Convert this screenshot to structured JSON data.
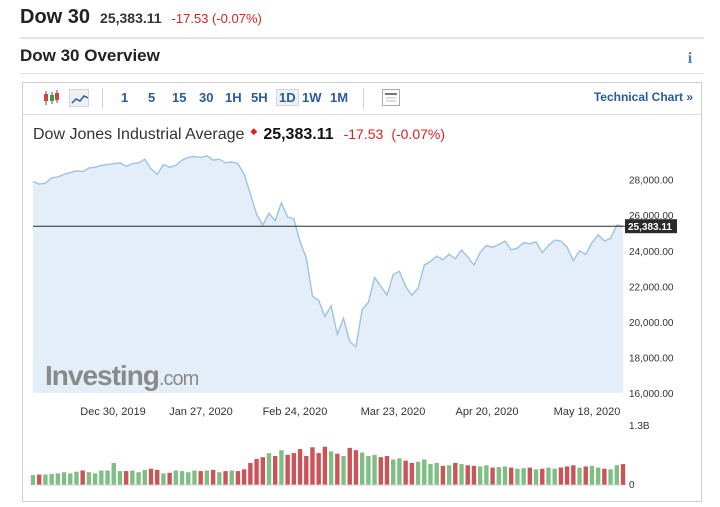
{
  "header": {
    "title": "Dow 30",
    "price": "25,383.11",
    "change": "-17.53 (-0.07%)"
  },
  "overview": {
    "title": "Dow 30 Overview",
    "info_icon": "i"
  },
  "toolbar": {
    "ranges": [
      "1",
      "5",
      "15",
      "30",
      "1H",
      "5H",
      "1D",
      "1W",
      "1M"
    ],
    "selected": "1D",
    "technical_chart": "Technical Chart »"
  },
  "chart_title": {
    "name": "Dow Jones Industrial Average",
    "price": "25,383.11",
    "change": "-17.53",
    "pct": "(-0.07%)"
  },
  "watermark": {
    "brand": "Investing",
    "suffix": ".com"
  },
  "colors": {
    "area_fill": "#e3eef8",
    "line": "#9cc3e3",
    "price_line": "#2a2a2a",
    "up": "#7fbf86",
    "down": "#c9545a",
    "neg": "#e02020",
    "link": "#2a5aa0"
  },
  "chart_data": {
    "type": "area",
    "title": "Dow Jones Industrial Average",
    "x_ticks": [
      "Dec 30, 2019",
      "Jan 27, 2020",
      "Feb 24, 2020",
      "Mar 23, 2020",
      "Apr 20, 2020",
      "May 18, 2020"
    ],
    "y_ticks": [
      "28,000.00",
      "26,000.00",
      "24,000.00",
      "22,000.00",
      "20,000.00",
      "18,000.00",
      "16,000.00"
    ],
    "ylim": [
      16000,
      29500
    ],
    "current_label": "25,383.11",
    "current_value": 25383.11,
    "values": [
      27900,
      27750,
      27800,
      28100,
      28150,
      28300,
      28400,
      28500,
      28450,
      28650,
      28700,
      28800,
      28850,
      28900,
      28950,
      28750,
      28900,
      28950,
      29150,
      28600,
      28300,
      28850,
      28700,
      28800,
      29100,
      29250,
      29300,
      29250,
      29350,
      29100,
      29150,
      28950,
      29000,
      28900,
      28300,
      27200,
      26050,
      25450,
      26100,
      25700,
      26700,
      25900,
      25800,
      24500,
      23600,
      21450,
      21200,
      20300,
      20900,
      19300,
      20200,
      18900,
      18600,
      20700,
      21100,
      22500,
      22000,
      21500,
      22650,
      22850,
      22000,
      21500,
      21900,
      23200,
      23400,
      23700,
      23500,
      23800,
      23550,
      24050,
      23650,
      23200,
      23900,
      24300,
      24200,
      24350,
      24550,
      24050,
      24150,
      24450,
      24400,
      24500,
      23900,
      24300,
      24600,
      24550,
      24200,
      23450,
      24000,
      23800,
      24450,
      24900,
      24550,
      24700,
      25450,
      25383.11
    ],
    "volume_ylabels": [
      "1.3B",
      "0"
    ],
    "volume": [
      0.17,
      0.18,
      0.18,
      0.19,
      0.2,
      0.22,
      0.2,
      0.23,
      0.25,
      0.22,
      0.2,
      0.25,
      0.25,
      0.38,
      0.24,
      0.24,
      0.25,
      0.22,
      0.26,
      0.28,
      0.26,
      0.2,
      0.21,
      0.25,
      0.24,
      0.22,
      0.25,
      0.24,
      0.25,
      0.26,
      0.22,
      0.24,
      0.25,
      0.24,
      0.27,
      0.38,
      0.45,
      0.48,
      0.55,
      0.5,
      0.6,
      0.52,
      0.55,
      0.62,
      0.5,
      0.65,
      0.55,
      0.66,
      0.58,
      0.54,
      0.5,
      0.64,
      0.6,
      0.56,
      0.5,
      0.52,
      0.48,
      0.5,
      0.44,
      0.46,
      0.42,
      0.38,
      0.4,
      0.44,
      0.36,
      0.38,
      0.33,
      0.34,
      0.38,
      0.36,
      0.34,
      0.33,
      0.32,
      0.34,
      0.3,
      0.31,
      0.32,
      0.3,
      0.28,
      0.29,
      0.3,
      0.27,
      0.28,
      0.3,
      0.28,
      0.3,
      0.32,
      0.34,
      0.3,
      0.32,
      0.33,
      0.3,
      0.28,
      0.27,
      0.34,
      0.36
    ]
  }
}
